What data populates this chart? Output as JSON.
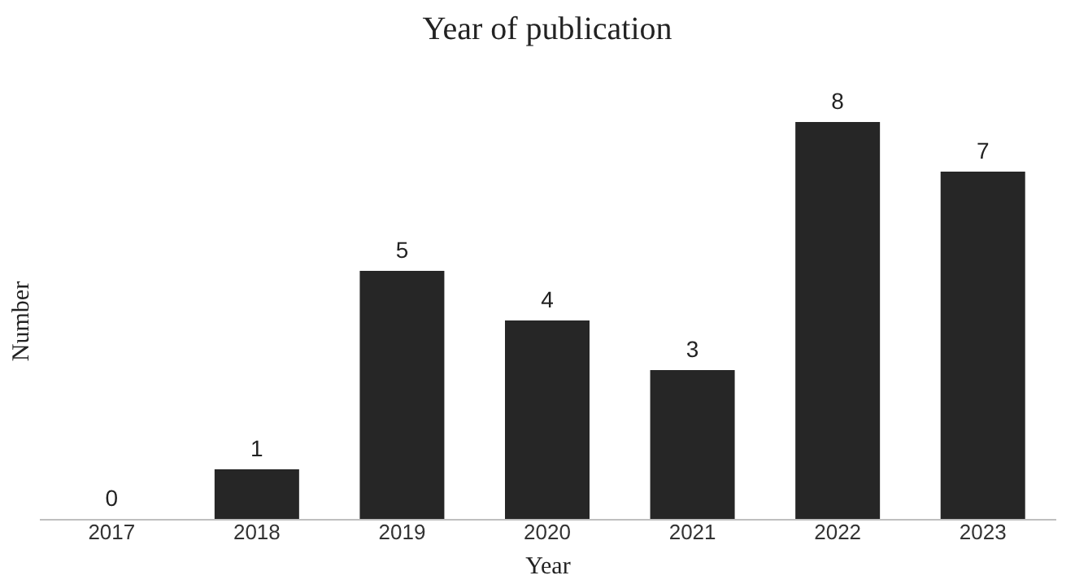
{
  "chart_data": {
    "type": "bar",
    "title": "Year of publication",
    "xlabel": "Year",
    "ylabel": "Number",
    "categories": [
      "2017",
      "2018",
      "2019",
      "2020",
      "2021",
      "2022",
      "2023"
    ],
    "values": [
      0,
      1,
      5,
      4,
      3,
      8,
      7
    ],
    "color": "#262626",
    "data_labels": true,
    "grid": false
  }
}
